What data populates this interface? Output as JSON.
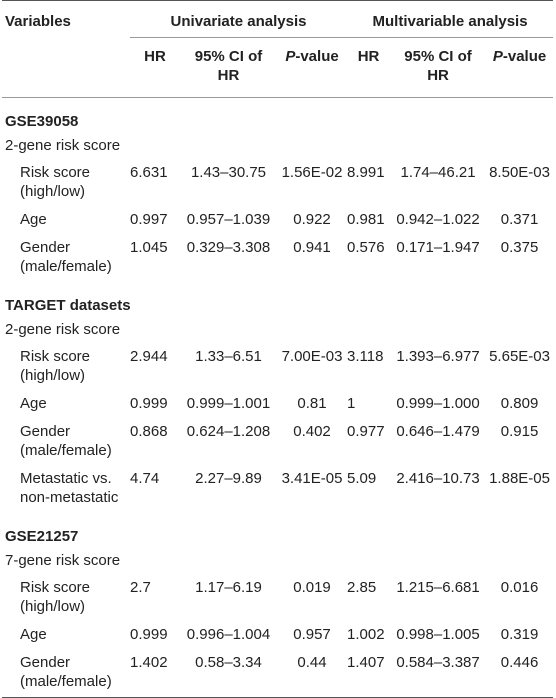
{
  "header": {
    "variables": "Variables",
    "univariate": "Univariate analysis",
    "multivariable": "Multivariable analysis",
    "hr": "HR",
    "ci_line1": "95% CI of",
    "ci_line2": "HR",
    "p_italic": "P",
    "p_suffix": "-value"
  },
  "sections": [
    {
      "name": "GSE39058",
      "score": "2-gene risk score",
      "rows": [
        {
          "l1": "Risk score",
          "l2": "(high/low)",
          "u_hr": "6.631",
          "u_ci": "1.43–30.75",
          "u_p": "1.56E-02",
          "m_hr": "8.991",
          "m_ci": "1.74–46.21",
          "m_p": "8.50E-03"
        },
        {
          "l1": "Age",
          "l2": "",
          "u_hr": "0.997",
          "u_ci": "0.957–1.039",
          "u_p": "0.922",
          "m_hr": "0.981",
          "m_ci": "0.942–1.022",
          "m_p": "0.371"
        },
        {
          "l1": "Gender",
          "l2": "(male/female)",
          "u_hr": "1.045",
          "u_ci": "0.329–3.308",
          "u_p": "0.941",
          "m_hr": "0.576",
          "m_ci": "0.171–1.947",
          "m_p": "0.375"
        }
      ]
    },
    {
      "name": "TARGET datasets",
      "score": "2-gene risk score",
      "rows": [
        {
          "l1": "Risk score",
          "l2": "(high/low)",
          "u_hr": "2.944",
          "u_ci": "1.33–6.51",
          "u_p": "7.00E-03",
          "m_hr": "3.118",
          "m_ci": "1.393–6.977",
          "m_p": "5.65E-03"
        },
        {
          "l1": "Age",
          "l2": "",
          "u_hr": "0.999",
          "u_ci": "0.999–1.001",
          "u_p": "0.81",
          "m_hr": "1",
          "m_ci": "0.999–1.000",
          "m_p": "0.809"
        },
        {
          "l1": "Gender",
          "l2": "(male/female)",
          "u_hr": "0.868",
          "u_ci": "0.624–1.208",
          "u_p": "0.402",
          "m_hr": "0.977",
          "m_ci": "0.646–1.479",
          "m_p": "0.915"
        },
        {
          "l1": "Metastatic vs.",
          "l2": "non-metastatic",
          "u_hr": "4.74",
          "u_ci": "2.27–9.89",
          "u_p": "3.41E-05",
          "m_hr": "5.09",
          "m_ci": "2.416–10.73",
          "m_p": "1.88E-05"
        }
      ]
    },
    {
      "name": "GSE21257",
      "score": "7-gene risk score",
      "rows": [
        {
          "l1": "Risk score",
          "l2": "(high/low)",
          "u_hr": "2.7",
          "u_ci": "1.17–6.19",
          "u_p": "0.019",
          "m_hr": "2.85",
          "m_ci": "1.215–6.681",
          "m_p": "0.016"
        },
        {
          "l1": "Age",
          "l2": "",
          "u_hr": "0.999",
          "u_ci": "0.996–1.004",
          "u_p": "0.957",
          "m_hr": "1.002",
          "m_ci": "0.998–1.005",
          "m_p": "0.319"
        },
        {
          "l1": "Gender",
          "l2": "(male/female)",
          "u_hr": "1.402",
          "u_ci": "0.58–3.34",
          "u_p": "0.44",
          "m_hr": "1.407",
          "m_ci": "0.584–3.387",
          "m_p": "0.446"
        }
      ]
    }
  ]
}
